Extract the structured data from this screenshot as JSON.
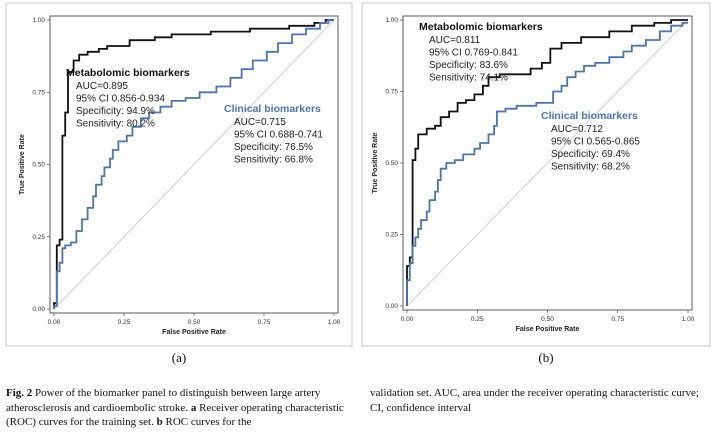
{
  "colors": {
    "metabolomic": "#111111",
    "clinical": "#4a74b8",
    "diagonal": "#cfcfcf"
  },
  "chart_data": [
    {
      "type": "line",
      "panel_label": "(a)",
      "xlabel": "False Positive Rate",
      "ylabel": "True Positive Rate",
      "xlim": [
        0,
        1
      ],
      "ylim": [
        0,
        1
      ],
      "xticks": [
        "0.00",
        "0.25",
        "0.50",
        "0.75",
        "1.00"
      ],
      "yticks": [
        "0.00",
        "0.25",
        "0.50",
        "0.75",
        "1.00"
      ],
      "series": [
        {
          "name": "Metabolomic biomarkers",
          "color": "#111111",
          "annotation": [
            "AUC=0.895",
            "95% CI 0.856-0.934",
            "Specificity: 94.9%",
            "Sensitivity: 80.2%"
          ],
          "points": [
            [
              0,
              0
            ],
            [
              0,
              0.02
            ],
            [
              0.01,
              0.02
            ],
            [
              0.01,
              0.22
            ],
            [
              0.02,
              0.22
            ],
            [
              0.02,
              0.24
            ],
            [
              0.03,
              0.24
            ],
            [
              0.03,
              0.6
            ],
            [
              0.04,
              0.6
            ],
            [
              0.04,
              0.68
            ],
            [
              0.05,
              0.68
            ],
            [
              0.05,
              0.82
            ],
            [
              0.07,
              0.82
            ],
            [
              0.07,
              0.86
            ],
            [
              0.09,
              0.86
            ],
            [
              0.09,
              0.88
            ],
            [
              0.12,
              0.88
            ],
            [
              0.12,
              0.89
            ],
            [
              0.16,
              0.89
            ],
            [
              0.16,
              0.9
            ],
            [
              0.19,
              0.9
            ],
            [
              0.19,
              0.91
            ],
            [
              0.27,
              0.91
            ],
            [
              0.27,
              0.93
            ],
            [
              0.36,
              0.93
            ],
            [
              0.36,
              0.94
            ],
            [
              0.42,
              0.94
            ],
            [
              0.42,
              0.95
            ],
            [
              0.56,
              0.95
            ],
            [
              0.56,
              0.96
            ],
            [
              0.7,
              0.96
            ],
            [
              0.7,
              0.97
            ],
            [
              0.84,
              0.97
            ],
            [
              0.84,
              0.98
            ],
            [
              0.93,
              0.98
            ],
            [
              0.93,
              0.99
            ],
            [
              0.97,
              0.99
            ],
            [
              0.97,
              1.0
            ],
            [
              1.0,
              1.0
            ]
          ]
        },
        {
          "name": "Clinical biomarkers",
          "color": "#4a74b8",
          "annotation": [
            "AUC=0.715",
            "95% CI 0.688-0.741",
            "Specificity: 76.5%",
            "Sensitivity: 66.8%"
          ],
          "points": [
            [
              0,
              0
            ],
            [
              0,
              0.01
            ],
            [
              0.01,
              0.01
            ],
            [
              0.01,
              0.13
            ],
            [
              0.02,
              0.13
            ],
            [
              0.02,
              0.16
            ],
            [
              0.03,
              0.16
            ],
            [
              0.03,
              0.21
            ],
            [
              0.04,
              0.21
            ],
            [
              0.04,
              0.22
            ],
            [
              0.06,
              0.22
            ],
            [
              0.06,
              0.23
            ],
            [
              0.08,
              0.23
            ],
            [
              0.08,
              0.27
            ],
            [
              0.1,
              0.27
            ],
            [
              0.1,
              0.31
            ],
            [
              0.12,
              0.31
            ],
            [
              0.12,
              0.35
            ],
            [
              0.14,
              0.35
            ],
            [
              0.14,
              0.39
            ],
            [
              0.15,
              0.39
            ],
            [
              0.15,
              0.43
            ],
            [
              0.17,
              0.43
            ],
            [
              0.17,
              0.46
            ],
            [
              0.18,
              0.46
            ],
            [
              0.18,
              0.49
            ],
            [
              0.2,
              0.49
            ],
            [
              0.2,
              0.52
            ],
            [
              0.21,
              0.52
            ],
            [
              0.21,
              0.55
            ],
            [
              0.23,
              0.55
            ],
            [
              0.23,
              0.58
            ],
            [
              0.26,
              0.58
            ],
            [
              0.26,
              0.6
            ],
            [
              0.28,
              0.6
            ],
            [
              0.28,
              0.63
            ],
            [
              0.31,
              0.63
            ],
            [
              0.31,
              0.66
            ],
            [
              0.34,
              0.66
            ],
            [
              0.34,
              0.68
            ],
            [
              0.38,
              0.68
            ],
            [
              0.38,
              0.7
            ],
            [
              0.42,
              0.7
            ],
            [
              0.42,
              0.72
            ],
            [
              0.47,
              0.72
            ],
            [
              0.47,
              0.73
            ],
            [
              0.52,
              0.73
            ],
            [
              0.52,
              0.75
            ],
            [
              0.58,
              0.75
            ],
            [
              0.58,
              0.77
            ],
            [
              0.63,
              0.77
            ],
            [
              0.63,
              0.8
            ],
            [
              0.67,
              0.8
            ],
            [
              0.67,
              0.83
            ],
            [
              0.71,
              0.83
            ],
            [
              0.71,
              0.86
            ],
            [
              0.76,
              0.86
            ],
            [
              0.76,
              0.89
            ],
            [
              0.8,
              0.89
            ],
            [
              0.8,
              0.92
            ],
            [
              0.85,
              0.92
            ],
            [
              0.85,
              0.95
            ],
            [
              0.9,
              0.95
            ],
            [
              0.9,
              0.97
            ],
            [
              0.95,
              0.97
            ],
            [
              0.95,
              0.99
            ],
            [
              0.98,
              0.99
            ],
            [
              0.98,
              1.0
            ],
            [
              1.0,
              1.0
            ]
          ]
        }
      ]
    },
    {
      "type": "line",
      "panel_label": "(b)",
      "xlabel": "False Positive Rate",
      "ylabel": "True Positive Rate",
      "xlim": [
        0,
        1
      ],
      "ylim": [
        0,
        1
      ],
      "xticks": [
        "0.00",
        "0.25",
        "0.50",
        "0.75",
        "1.00"
      ],
      "yticks": [
        "0.00",
        "0.25",
        "0.50",
        "0.75",
        "1.00"
      ],
      "series": [
        {
          "name": "Metabolomic biomarkers",
          "color": "#111111",
          "annotation": [
            "AUC=0.811",
            "95% CI 0.769-0.841",
            "Specificity: 83.6%",
            "Sensitivity: 74.1%"
          ],
          "points": [
            [
              0,
              0
            ],
            [
              0,
              0.14
            ],
            [
              0.01,
              0.14
            ],
            [
              0.01,
              0.17
            ],
            [
              0.02,
              0.17
            ],
            [
              0.02,
              0.51
            ],
            [
              0.03,
              0.51
            ],
            [
              0.03,
              0.55
            ],
            [
              0.04,
              0.55
            ],
            [
              0.04,
              0.6
            ],
            [
              0.07,
              0.6
            ],
            [
              0.07,
              0.62
            ],
            [
              0.1,
              0.62
            ],
            [
              0.1,
              0.63
            ],
            [
              0.12,
              0.63
            ],
            [
              0.12,
              0.66
            ],
            [
              0.15,
              0.66
            ],
            [
              0.15,
              0.68
            ],
            [
              0.18,
              0.68
            ],
            [
              0.18,
              0.71
            ],
            [
              0.21,
              0.71
            ],
            [
              0.21,
              0.72
            ],
            [
              0.24,
              0.72
            ],
            [
              0.24,
              0.74
            ],
            [
              0.27,
              0.74
            ],
            [
              0.27,
              0.77
            ],
            [
              0.29,
              0.77
            ],
            [
              0.29,
              0.8
            ],
            [
              0.33,
              0.8
            ],
            [
              0.33,
              0.81
            ],
            [
              0.44,
              0.81
            ],
            [
              0.44,
              0.83
            ],
            [
              0.48,
              0.83
            ],
            [
              0.48,
              0.85
            ],
            [
              0.51,
              0.85
            ],
            [
              0.51,
              0.9
            ],
            [
              0.55,
              0.9
            ],
            [
              0.55,
              0.92
            ],
            [
              0.62,
              0.92
            ],
            [
              0.62,
              0.94
            ],
            [
              0.72,
              0.94
            ],
            [
              0.72,
              0.96
            ],
            [
              0.8,
              0.96
            ],
            [
              0.8,
              0.98
            ],
            [
              0.88,
              0.98
            ],
            [
              0.88,
              0.99
            ],
            [
              0.94,
              0.99
            ],
            [
              0.94,
              1.0
            ],
            [
              1.0,
              1.0
            ]
          ]
        },
        {
          "name": "Clinical biomarkers",
          "color": "#4a74b8",
          "annotation": [
            "AUC=0.712",
            "95% CI 0.565-0.865",
            "Specificity: 69.4%",
            "Sensitivity: 68.2%"
          ],
          "points": [
            [
              0,
              0
            ],
            [
              0,
              0.09
            ],
            [
              0.01,
              0.09
            ],
            [
              0.01,
              0.15
            ],
            [
              0.02,
              0.15
            ],
            [
              0.02,
              0.21
            ],
            [
              0.03,
              0.21
            ],
            [
              0.03,
              0.24
            ],
            [
              0.04,
              0.24
            ],
            [
              0.04,
              0.27
            ],
            [
              0.05,
              0.27
            ],
            [
              0.05,
              0.3
            ],
            [
              0.07,
              0.3
            ],
            [
              0.07,
              0.33
            ],
            [
              0.08,
              0.33
            ],
            [
              0.08,
              0.37
            ],
            [
              0.1,
              0.37
            ],
            [
              0.1,
              0.4
            ],
            [
              0.11,
              0.4
            ],
            [
              0.11,
              0.44
            ],
            [
              0.12,
              0.44
            ],
            [
              0.12,
              0.48
            ],
            [
              0.14,
              0.48
            ],
            [
              0.14,
              0.5
            ],
            [
              0.17,
              0.5
            ],
            [
              0.17,
              0.51
            ],
            [
              0.2,
              0.51
            ],
            [
              0.2,
              0.53
            ],
            [
              0.24,
              0.53
            ],
            [
              0.24,
              0.55
            ],
            [
              0.26,
              0.55
            ],
            [
              0.26,
              0.57
            ],
            [
              0.29,
              0.57
            ],
            [
              0.29,
              0.6
            ],
            [
              0.31,
              0.6
            ],
            [
              0.31,
              0.63
            ],
            [
              0.32,
              0.63
            ],
            [
              0.32,
              0.68
            ],
            [
              0.35,
              0.68
            ],
            [
              0.35,
              0.69
            ],
            [
              0.39,
              0.69
            ],
            [
              0.39,
              0.7
            ],
            [
              0.46,
              0.7
            ],
            [
              0.46,
              0.71
            ],
            [
              0.52,
              0.71
            ],
            [
              0.52,
              0.75
            ],
            [
              0.55,
              0.75
            ],
            [
              0.55,
              0.77
            ],
            [
              0.57,
              0.77
            ],
            [
              0.57,
              0.8
            ],
            [
              0.6,
              0.8
            ],
            [
              0.6,
              0.82
            ],
            [
              0.63,
              0.82
            ],
            [
              0.63,
              0.84
            ],
            [
              0.67,
              0.84
            ],
            [
              0.67,
              0.85
            ],
            [
              0.72,
              0.85
            ],
            [
              0.72,
              0.87
            ],
            [
              0.77,
              0.87
            ],
            [
              0.77,
              0.89
            ],
            [
              0.8,
              0.89
            ],
            [
              0.8,
              0.91
            ],
            [
              0.85,
              0.91
            ],
            [
              0.85,
              0.93
            ],
            [
              0.9,
              0.93
            ],
            [
              0.9,
              0.96
            ],
            [
              0.94,
              0.96
            ],
            [
              0.94,
              0.98
            ],
            [
              0.98,
              0.98
            ],
            [
              0.98,
              0.99
            ],
            [
              1.0,
              0.99
            ]
          ]
        }
      ]
    }
  ],
  "caption": {
    "fig_label": "Fig. 2",
    "left": "Power of the biomarker panel to distinguish between large artery atherosclerosis and cardioembolic stroke.",
    "a_letter": "a",
    "a_text": "Receiver operating characteristic (ROC) curves for the training set.",
    "b_letter": "b",
    "b_text": "ROC curves for the",
    "right": "validation set. AUC, area under the receiver operating characteristic curve; CI, confidence interval"
  }
}
